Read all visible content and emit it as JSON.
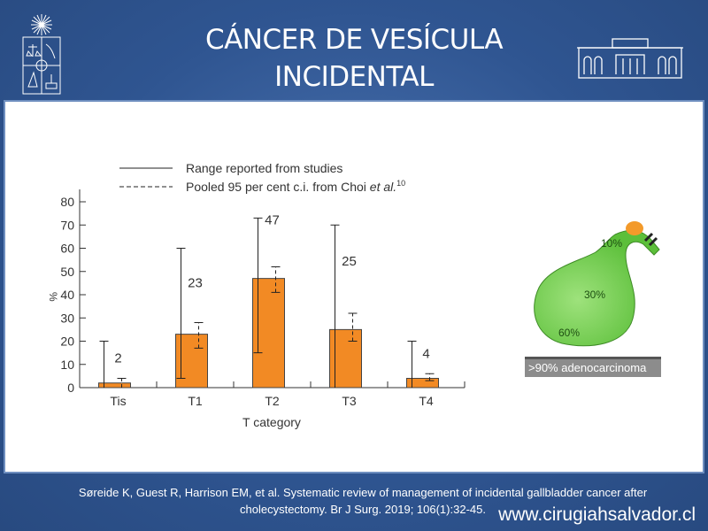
{
  "header": {
    "title_line1": "CÁNCER DE VESÍCULA",
    "title_line2": "INCIDENTAL"
  },
  "chart_data": {
    "type": "bar",
    "categories": [
      "Tis",
      "T1",
      "T2",
      "T3",
      "T4"
    ],
    "values": [
      2,
      23,
      47,
      25,
      4
    ],
    "data_labels": [
      "2",
      "23",
      "47",
      "25",
      "4"
    ],
    "range_reported": [
      [
        0,
        20
      ],
      [
        4,
        60
      ],
      [
        15,
        73
      ],
      [
        0,
        70
      ],
      [
        0,
        20
      ]
    ],
    "pooled_ci": [
      [
        0,
        4
      ],
      [
        17,
        28
      ],
      [
        41,
        52
      ],
      [
        20,
        32
      ],
      [
        3,
        6
      ]
    ],
    "xlabel": "T category",
    "ylabel": "%",
    "ylim": [
      0,
      80
    ],
    "yticks": [
      "0",
      "10",
      "20",
      "30",
      "40",
      "50",
      "60",
      "70",
      "80"
    ],
    "legend": {
      "placement": "top",
      "solid": "Range reported from studies",
      "dashed": "Pooled 95 per cent c.i. from Choi ",
      "dashed_italic": "et al.",
      "dashed_sup": "10"
    },
    "bar_color": "#f28a24"
  },
  "gallbladder": {
    "fundus": "60%",
    "body": "30%",
    "neck": "10%",
    "caption": ">90% adenocarcinoma"
  },
  "footer": {
    "citation": "Søreide K, Guest R, Harrison EM, et al. Systematic review of management of incidental gallbladder cancer after cholecystectomy. Br J Surg. 2019; 106(1):32-45.",
    "website": "www.cirugiahsalvador.cl"
  }
}
